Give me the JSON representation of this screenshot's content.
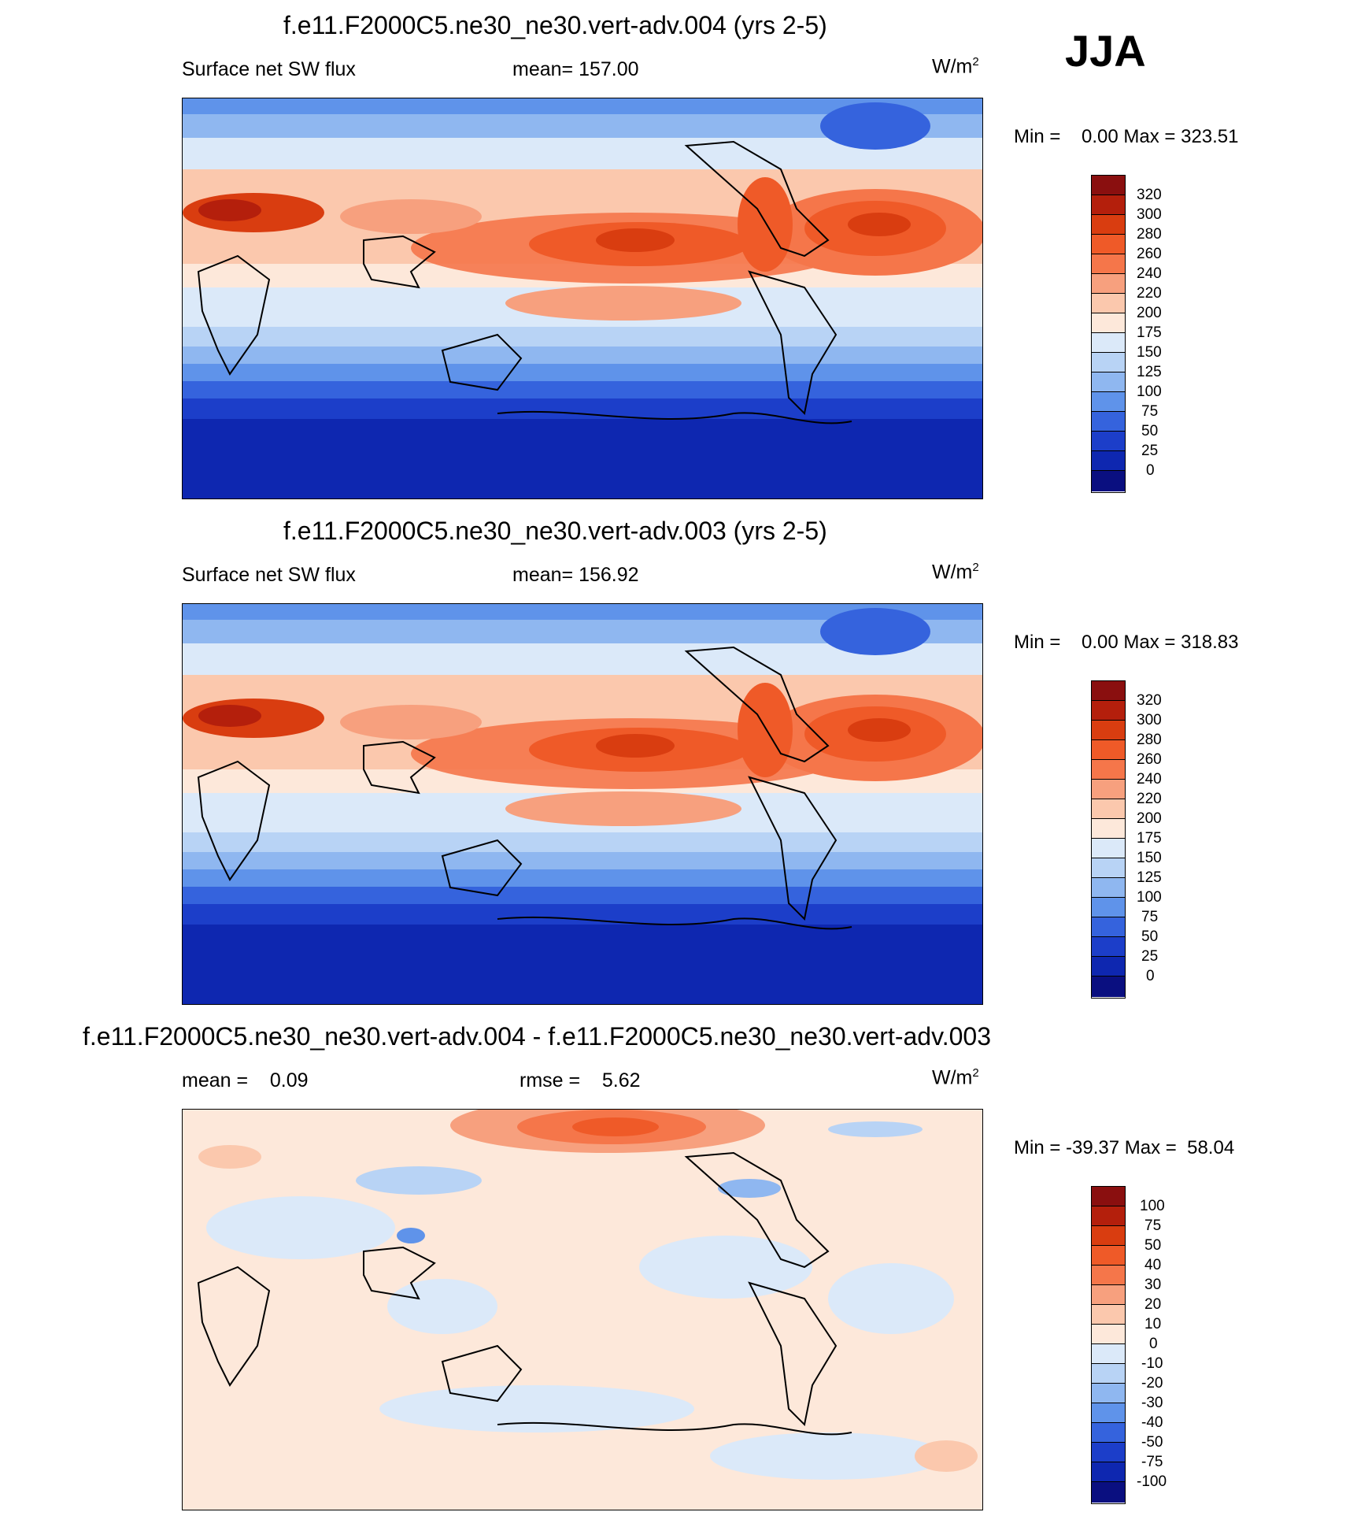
{
  "season": "JJA",
  "panels": [
    {
      "title": "f.e11.F2000C5.ne30_ne30.vert-adv.004 (yrs 2-5)",
      "variable": "Surface net SW flux",
      "stat1": "mean= 157.00",
      "stat2": "",
      "units": "W/m",
      "units_exp": "2",
      "minmax": "Min =    0.00 Max = 323.51",
      "colorbar": {
        "labels": [
          "320",
          "300",
          "280",
          "260",
          "240",
          "220",
          "200",
          "175",
          "150",
          "125",
          "100",
          "75",
          "50",
          "25",
          "0"
        ],
        "colors": [
          "#8a0f0f",
          "#b41f0c",
          "#d93d10",
          "#ef5a28",
          "#f5764a",
          "#f7a07e",
          "#fbc8ad",
          "#fde8da",
          "#dbe9f9",
          "#b8d3f5",
          "#8fb7f0",
          "#5f93ea",
          "#3563dd",
          "#1c3ec9",
          "#0e27b0",
          "#0a0f80"
        ]
      }
    },
    {
      "title": "f.e11.F2000C5.ne30_ne30.vert-adv.003 (yrs 2-5)",
      "variable": "Surface net SW flux",
      "stat1": "mean= 156.92",
      "stat2": "",
      "units": "W/m",
      "units_exp": "2",
      "minmax": "Min =    0.00 Max = 318.83",
      "colorbar": {
        "labels": [
          "320",
          "300",
          "280",
          "260",
          "240",
          "220",
          "200",
          "175",
          "150",
          "125",
          "100",
          "75",
          "50",
          "25",
          "0"
        ],
        "colors": [
          "#8a0f0f",
          "#b41f0c",
          "#d93d10",
          "#ef5a28",
          "#f5764a",
          "#f7a07e",
          "#fbc8ad",
          "#fde8da",
          "#dbe9f9",
          "#b8d3f5",
          "#8fb7f0",
          "#5f93ea",
          "#3563dd",
          "#1c3ec9",
          "#0e27b0",
          "#0a0f80"
        ]
      }
    },
    {
      "title": "f.e11.F2000C5.ne30_ne30.vert-adv.004 - f.e11.F2000C5.ne30_ne30.vert-adv.003",
      "variable": "",
      "stat1": "mean =    0.09",
      "stat2": "rmse =    5.62",
      "units": "W/m",
      "units_exp": "2",
      "minmax": "Min = -39.37 Max =  58.04",
      "colorbar": {
        "labels": [
          "100",
          "75",
          "50",
          "40",
          "30",
          "20",
          "10",
          "0",
          "-10",
          "-20",
          "-30",
          "-40",
          "-50",
          "-75",
          "-100"
        ],
        "colors": [
          "#8a0f0f",
          "#b41f0c",
          "#d93d10",
          "#ef5a28",
          "#f5764a",
          "#f7a07e",
          "#fbc8ad",
          "#fde8da",
          "#dbe9f9",
          "#b8d3f5",
          "#8fb7f0",
          "#5f93ea",
          "#3563dd",
          "#1c3ec9",
          "#0e27b0",
          "#0a0f80"
        ]
      }
    }
  ]
}
